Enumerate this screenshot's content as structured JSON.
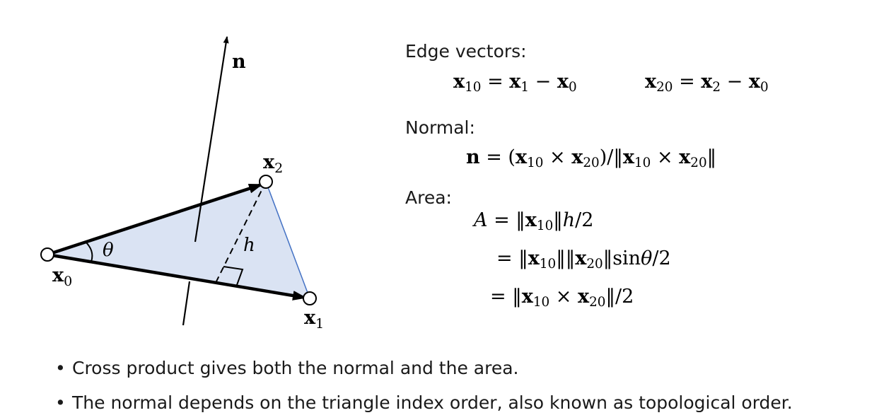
{
  "diagram": {
    "labels": {
      "normal": "n",
      "x0": "x",
      "x0_sub": "0",
      "x1": "x",
      "x1_sub": "1",
      "x2": "x",
      "x2_sub": "2",
      "theta": "θ",
      "h": "h"
    },
    "colors": {
      "triangle_fill": "#dae3f3",
      "triangle_edge": "#4472c4",
      "line": "#000000"
    }
  },
  "sections": {
    "edge_heading": "Edge vectors:",
    "normal_heading": "Normal:",
    "area_heading": "Area:"
  },
  "equations": {
    "edge1": {
      "lhs": "x",
      "lhs_sub": "10",
      "op": " = ",
      "a": "x",
      "a_sub": "1",
      "minus": " − ",
      "b": "x",
      "b_sub": "0"
    },
    "edge2": {
      "lhs": "x",
      "lhs_sub": "20",
      "op": " = ",
      "a": "x",
      "a_sub": "2",
      "minus": " − ",
      "b": "x",
      "b_sub": "0"
    },
    "normal": {
      "n": "n",
      "eq": " = (",
      "a": "x",
      "a_sub": "10",
      "cross": " × ",
      "b": "x",
      "b_sub": "20",
      "mid": ")/‖",
      "c": "x",
      "c_sub": "10",
      "cross2": " × ",
      "d": "x",
      "d_sub": "20",
      "end": "‖"
    },
    "area1": {
      "A": "A",
      "eq": " = ‖",
      "a": "x",
      "a_sub": "10",
      "mid": "‖",
      "h": "h",
      "end": "/2"
    },
    "area2": {
      "eq": "= ‖",
      "a": "x",
      "a_sub": "10",
      "mid": "‖‖",
      "b": "x",
      "b_sub": "20",
      "mid2": "‖sin",
      "theta": "θ",
      "end": "/2"
    },
    "area3": {
      "eq": "= ‖",
      "a": "x",
      "a_sub": "10",
      "cross": " × ",
      "b": "x",
      "b_sub": "20",
      "end": "‖/2"
    }
  },
  "bullets": [
    "Cross product gives both the normal and the area.",
    "The normal depends on the triangle index order, also known as topological order."
  ],
  "bullet_symbol": "•"
}
